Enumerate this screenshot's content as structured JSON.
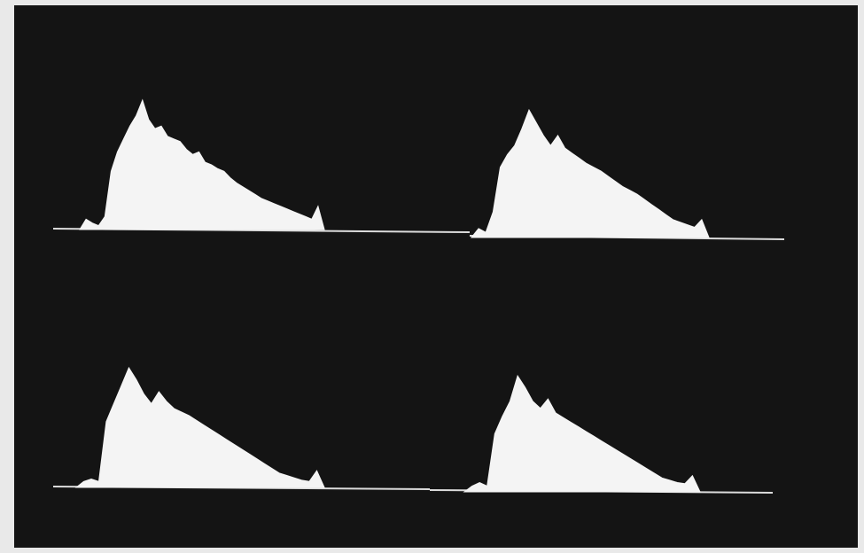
{
  "chart_data": [
    {
      "type": "area",
      "color": "#f4f4f4",
      "values": [
        0,
        8,
        5,
        3,
        10,
        45,
        60,
        70,
        80,
        88,
        100,
        85,
        78,
        80,
        72,
        70,
        68,
        62,
        58,
        60,
        52,
        50,
        47,
        45,
        40,
        36,
        33,
        30,
        27,
        24,
        22,
        20,
        18,
        16,
        14,
        12,
        10,
        8,
        18,
        0
      ]
    },
    {
      "type": "area",
      "color": "#f4f4f4",
      "values": [
        0,
        7,
        4,
        20,
        55,
        65,
        72,
        85,
        100,
        90,
        80,
        72,
        80,
        70,
        66,
        62,
        58,
        55,
        52,
        48,
        44,
        40,
        37,
        34,
        30,
        26,
        22,
        18,
        14,
        12,
        10,
        8,
        14,
        0
      ]
    },
    {
      "type": "area",
      "color": "#f4f4f4",
      "values": [
        0,
        5,
        7,
        5,
        55,
        70,
        85,
        100,
        90,
        78,
        70,
        80,
        72,
        66,
        63,
        60,
        56,
        52,
        48,
        44,
        40,
        36,
        32,
        28,
        24,
        20,
        16,
        12,
        10,
        8,
        6,
        5,
        14,
        0
      ]
    },
    {
      "type": "area",
      "color": "#f4f4f4",
      "values": [
        0,
        5,
        8,
        5,
        50,
        65,
        78,
        100,
        90,
        78,
        72,
        80,
        68,
        64,
        60,
        56,
        52,
        48,
        44,
        40,
        36,
        32,
        28,
        24,
        20,
        16,
        12,
        10,
        8,
        7,
        14,
        0
      ]
    }
  ]
}
